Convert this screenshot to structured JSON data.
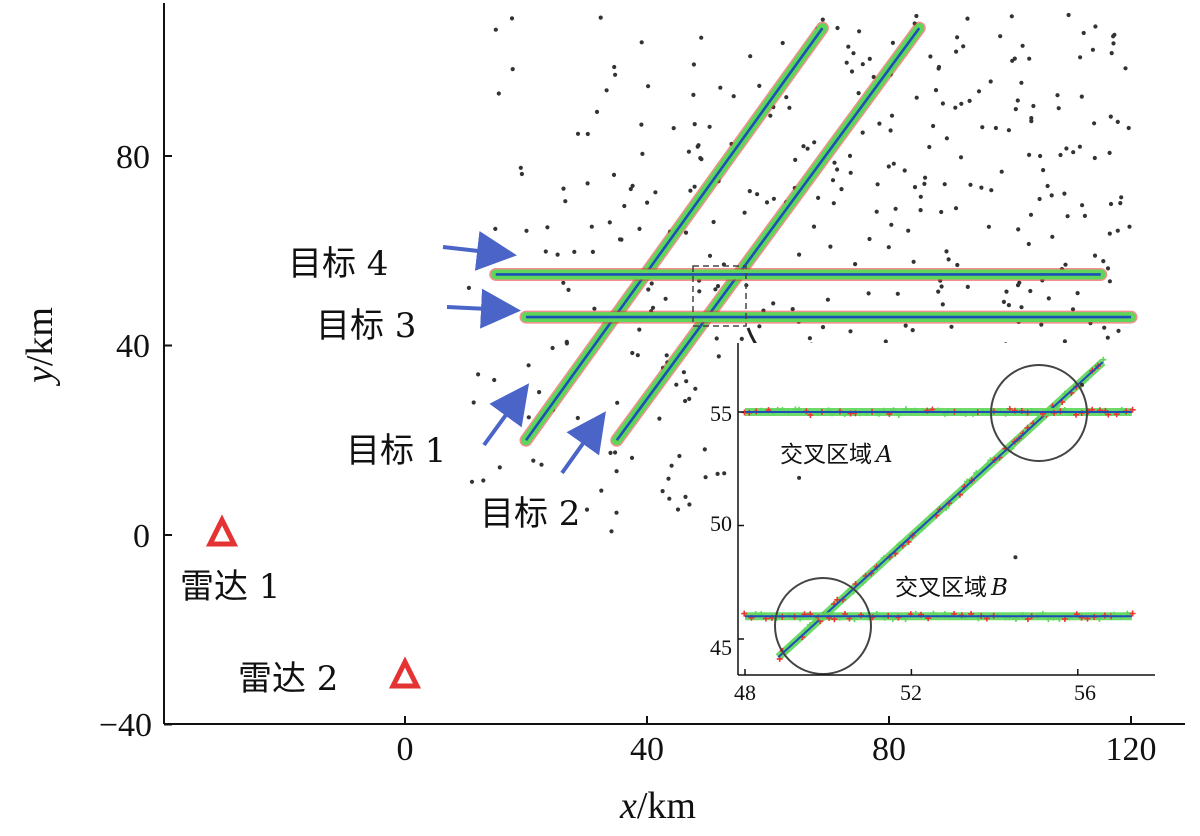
{
  "chart_data": [
    {
      "type": "scatter",
      "xlabel_var": "x",
      "xlabel_unit": "/km",
      "ylabel_var": "y",
      "ylabel_unit": "/km",
      "xlim": [
        -40,
        125
      ],
      "ylim": [
        -40,
        112
      ],
      "xticks": [
        0,
        40,
        80,
        120
      ],
      "yticks": [
        -40,
        0,
        40,
        80
      ],
      "xtick_labels": [
        "0",
        "40",
        "80",
        "120"
      ],
      "ytick_labels": [
        "−40",
        "0",
        "40",
        "80"
      ],
      "radars": [
        {
          "label": "雷达 1",
          "x": -30,
          "y": 0
        },
        {
          "label": "雷达 2",
          "x": 0,
          "y": -30
        }
      ],
      "targets": [
        {
          "label": "目标 1",
          "start": [
            20,
            20
          ],
          "end": [
            69,
            107
          ]
        },
        {
          "label": "目标 2",
          "start": [
            35,
            20
          ],
          "end": [
            85,
            107
          ]
        },
        {
          "label": "目标 3",
          "start": [
            20,
            46
          ],
          "end": [
            120,
            46
          ]
        },
        {
          "label": "目标 4",
          "start": [
            15,
            55
          ],
          "end": [
            115,
            55
          ]
        }
      ],
      "clutter_region": {
        "xlim": [
          10,
          120
        ],
        "ylim": [
          0,
          110
        ],
        "count": 520
      },
      "colors": {
        "track": "#5fd65a",
        "estimate": "#1c4fb8",
        "measurement": "#ee3333",
        "clutter": "#333333",
        "radar": "#e33333",
        "arrow": "#4a64c8"
      }
    },
    {
      "type": "line",
      "inset": true,
      "xlim": [
        48,
        57.5
      ],
      "ylim": [
        44.3,
        57.5
      ],
      "xticks": [
        48,
        52,
        56
      ],
      "yticks": [
        45,
        50,
        55
      ],
      "xtick_labels": [
        "48",
        "52",
        "56"
      ],
      "ytick_labels": [
        "45",
        "50",
        "55"
      ],
      "lines": [
        {
          "name": "diagonal",
          "start": [
            48.8,
            44.2
          ],
          "end": [
            56.6,
            57.2
          ]
        },
        {
          "name": "upper",
          "start": [
            48,
            55
          ],
          "end": [
            57.3,
            55
          ]
        },
        {
          "name": "lower",
          "start": [
            48,
            46
          ],
          "end": [
            57.3,
            46
          ]
        }
      ],
      "regions": [
        {
          "label_text": "交叉区域",
          "label_var": "A",
          "center": [
            55.1,
            55.1
          ]
        },
        {
          "label_text": "交叉区域",
          "label_var": "B",
          "center": [
            49.6,
            45.9
          ]
        }
      ]
    }
  ],
  "main_labels": {
    "y_tick_80": "80",
    "y_tick_40": "40",
    "y_tick_0": "0",
    "y_tick_m40": "−40",
    "x_tick_0": "0",
    "x_tick_40": "40",
    "x_tick_80": "80",
    "x_tick_120": "120",
    "x_var": "x",
    "x_unit": "/km",
    "y_var": "y",
    "y_unit": "/km",
    "target4": "目标 4",
    "target3": "目标 3",
    "target1": "目标 1",
    "target2": "目标 2",
    "radar1": "雷达 1",
    "radar2": "雷达 2"
  },
  "inset_labels": {
    "y55": "55",
    "y50": "50",
    "y45": "45",
    "x48": "48",
    "x52": "52",
    "x56": "56",
    "region_a_text": "交叉区域",
    "region_a_var": "A",
    "region_b_text": "交叉区域",
    "region_b_var": "B"
  }
}
